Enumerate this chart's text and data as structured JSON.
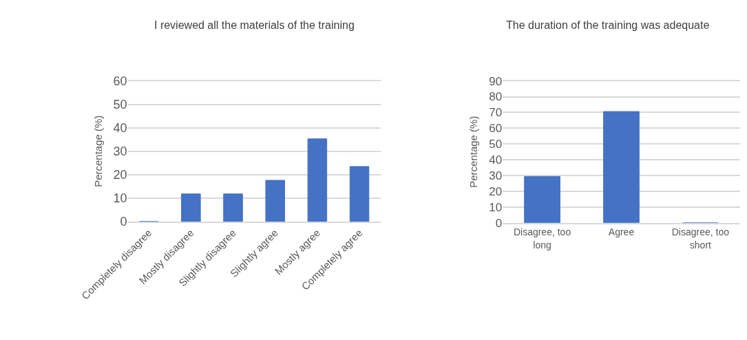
{
  "chart_data": [
    {
      "type": "bar",
      "title": "I reviewed all the materials of the training",
      "ylabel": "Percentage (%)",
      "categories": [
        "Completely disagree",
        "Mostly disagree",
        "Slightly disagree",
        "Slightly agree",
        "Mostly agree",
        "Completely agree"
      ],
      "values": [
        0,
        11.8,
        11.8,
        17.6,
        35.3,
        23.5
      ],
      "color": "#4472c4",
      "ylim": [
        0,
        60
      ],
      "yticks": [
        0,
        10,
        20,
        30,
        40,
        50,
        60
      ],
      "grid": "y",
      "legend": false
    },
    {
      "type": "bar",
      "title": "The duration of the training was adequate",
      "ylabel": "Percentage (%)",
      "categories": [
        "Disagree, too long",
        "Agree",
        "Disagree, too short"
      ],
      "values": [
        29.4,
        70.6,
        0
      ],
      "color": "#4472c4",
      "ylim": [
        0,
        90
      ],
      "yticks": [
        0,
        10,
        20,
        30,
        40,
        50,
        60,
        70,
        80,
        90
      ],
      "grid": "y",
      "legend": false
    }
  ]
}
